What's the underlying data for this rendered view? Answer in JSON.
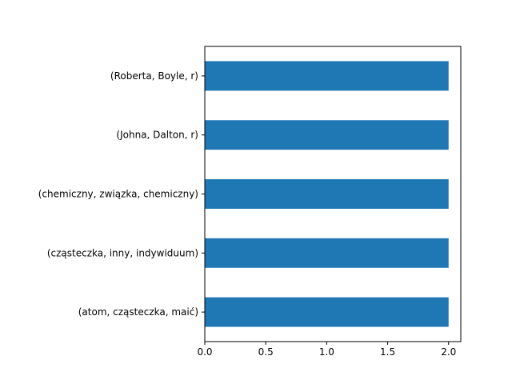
{
  "chart_data": {
    "type": "bar",
    "orientation": "horizontal",
    "categories": [
      "(atom, cząsteczka, maić)",
      "(cząsteczka, inny, indywiduum)",
      "(chemiczny, związka, chemiczny)",
      "(Johna, Dalton, r)",
      "(Roberta, Boyle, r)"
    ],
    "values": [
      2,
      2,
      2,
      2,
      2
    ],
    "xlim": [
      0,
      2.1
    ],
    "xticks": [
      "0.0",
      "0.5",
      "1.0",
      "1.5",
      "2.0"
    ],
    "title": "",
    "xlabel": "",
    "ylabel": "",
    "grid": false,
    "bar_color": "#1f77b4"
  }
}
